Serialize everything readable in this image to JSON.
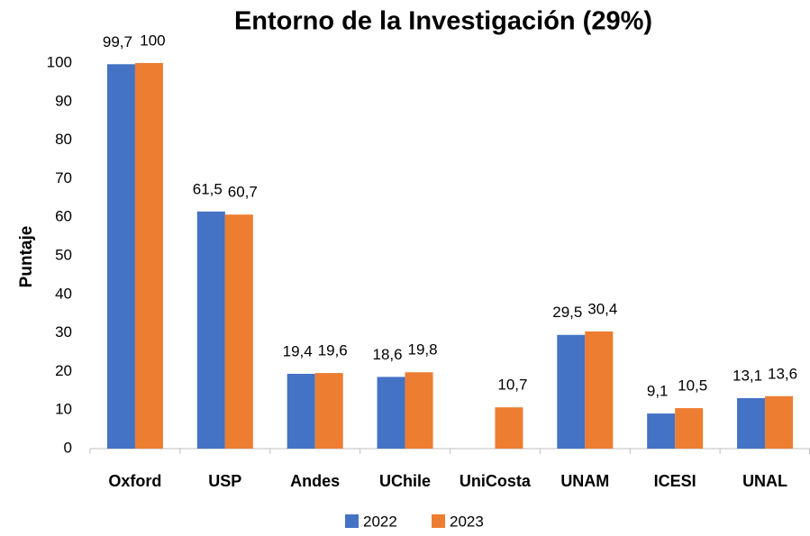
{
  "chart_data": {
    "type": "bar",
    "title": "Entorno de la Investigación (29%)",
    "y_label": "Puntaje",
    "categories": [
      "Oxford",
      "USP",
      "Andes",
      "UChile",
      "UniCosta",
      "UNAM",
      "ICESI",
      "UNAL"
    ],
    "series": [
      {
        "name": "2022",
        "color": "#4472c4",
        "values": [
          99.7,
          61.5,
          19.4,
          18.6,
          null,
          29.5,
          9.1,
          13.1
        ],
        "value_labels": [
          "99,7",
          "61,5",
          "19,4",
          "18,6",
          null,
          "29,5",
          "9,1",
          "13,1"
        ]
      },
      {
        "name": "2023",
        "color": "#ed7d31",
        "values": [
          100,
          60.7,
          19.6,
          19.8,
          10.7,
          30.4,
          10.5,
          13.6
        ],
        "value_labels": [
          "100",
          "60,7",
          "19,6",
          "19,8",
          "10,7",
          "30,4",
          "10,5",
          "13,6"
        ]
      }
    ],
    "ylim": [
      0,
      100
    ],
    "yticks": [
      0,
      10,
      20,
      30,
      40,
      50,
      60,
      70,
      80,
      90,
      100
    ],
    "grid": false,
    "legend": "bottom"
  }
}
